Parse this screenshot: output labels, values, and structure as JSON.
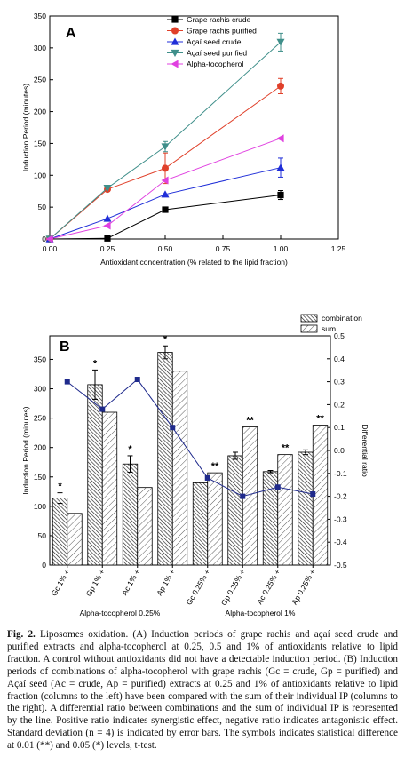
{
  "chart_data": [
    {
      "panel": "A",
      "type": "line",
      "xlabel": "Antioxidant concentration (% related to the lipid fraction)",
      "ylabel": "Induction Period (minutes)",
      "xlim": [
        0,
        1.25
      ],
      "ylim": [
        0,
        350
      ],
      "xticks": [
        "0.00",
        "0.25",
        "0.50",
        "0.75",
        "1.00",
        "1.25"
      ],
      "yticks": [
        "0",
        "50",
        "100",
        "150",
        "200",
        "250",
        "300",
        "350"
      ],
      "x": [
        0,
        0.25,
        0.5,
        1.0
      ],
      "legend_position": "top-right",
      "series": [
        {
          "name": "Grape rachis crude",
          "color": "#000000",
          "marker": "square",
          "values": [
            0,
            1,
            46,
            69
          ],
          "err": [
            0,
            0,
            0,
            7
          ]
        },
        {
          "name": "Grape rachis purified",
          "color": "#e0402a",
          "marker": "circle",
          "values": [
            0,
            78,
            111,
            240
          ],
          "err": [
            0,
            0,
            24,
            12
          ]
        },
        {
          "name": "Açaí seed crude",
          "color": "#1f2ed8",
          "marker": "triangle-up",
          "values": [
            0,
            32,
            70,
            112
          ],
          "err": [
            0,
            0,
            0,
            15
          ]
        },
        {
          "name": "Açaí seed purified",
          "color": "#3f8f8a",
          "marker": "triangle-down",
          "values": [
            0,
            80,
            145,
            309
          ],
          "err": [
            0,
            0,
            8,
            14
          ]
        },
        {
          "name": "Alpha-tocopherol",
          "color": "#e040e0",
          "marker": "triangle-left",
          "values": [
            0,
            21,
            92,
            158
          ],
          "err": [
            0,
            0,
            0,
            0
          ]
        }
      ]
    },
    {
      "panel": "B",
      "type": "bar",
      "ylabel": "Induction Period (minutes)",
      "y2label": "Differential ratio",
      "ylim": [
        0,
        390
      ],
      "y2lim": [
        -0.5,
        0.5
      ],
      "yticks": [
        "0",
        "50",
        "100",
        "150",
        "200",
        "250",
        "300",
        "350"
      ],
      "y2ticks": [
        "-0.5",
        "-0.4",
        "-0.3",
        "-0.2",
        "-0.1",
        "0.0",
        "0.1",
        "0.2",
        "0.3",
        "0.4",
        "0.5"
      ],
      "categories": [
        "Gc 1% +",
        "Gp 1% +",
        "Ac 1% +",
        "Ap 1% +",
        "Gc 0.25% +",
        "Gp 0.25% +",
        "Ac 0.25% +",
        "Ap 0.25% +"
      ],
      "group_labels": [
        "Alpha-tocopherol 0.25%",
        "Alpha-tocopherol 1%"
      ],
      "legend_position": "top-right",
      "series": [
        {
          "name": "combination",
          "values": [
            114,
            307,
            172,
            362,
            140,
            186,
            159,
            192
          ],
          "err": [
            9,
            25,
            14,
            11,
            0,
            6,
            2,
            4
          ],
          "sig": [
            "*",
            "*",
            "*",
            "*",
            "",
            "",
            "",
            ""
          ]
        },
        {
          "name": "sum",
          "values": [
            88,
            260,
            132,
            330,
            157,
            235,
            188,
            238
          ],
          "sig": [
            "",
            "",
            "",
            "",
            "**",
            "**",
            "**",
            "**"
          ]
        }
      ],
      "ratio": [
        0.3,
        0.18,
        0.31,
        0.1,
        -0.12,
        -0.2,
        -0.16,
        -0.19
      ],
      "ratio_color": "#1f2a8c"
    }
  ],
  "caption": {
    "label": "Fig. 2.",
    "text": " Liposomes oxidation. (A) Induction periods of grape rachis and açaí seed crude and purified extracts and alpha-tocopherol at 0.25, 0.5 and 1% of antioxidants relative to lipid fraction. A control without antioxidants did not have a detectable induction period. (B) Induction periods of combinations of alpha-tocopherol with grape rachis (Gc = crude, Gp = purified) and Açaí seed (Ac = crude, Ap = purified) extracts at 0.25 and 1% of antioxidants relative to lipid fraction (columns to the left) have been compared with the sum of their individual IP (columns to the right). A differential ratio between combinations and the sum of individual IP is represented by the line. Positive ratio indicates synergistic effect, negative ratio indicates antagonistic effect. Standard deviation (n = 4) is indicated by error bars. The symbols indicates statistical difference at 0.01 (**) and 0.05 (*) levels, t-test."
  }
}
